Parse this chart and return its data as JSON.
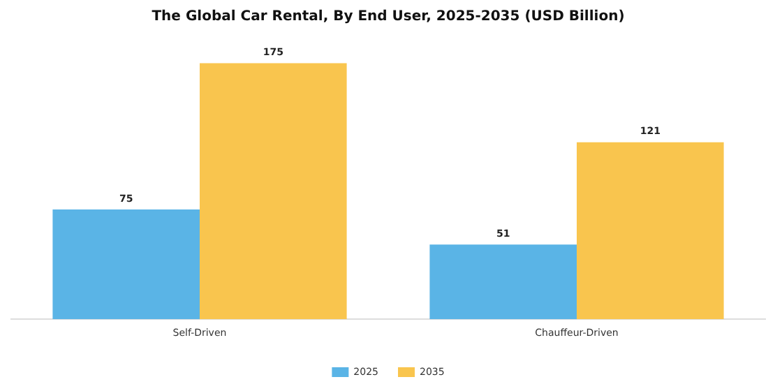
{
  "chart_data": {
    "type": "bar",
    "title": "The Global Car Rental, By End User, 2025-2035 (USD Billion)",
    "categories": [
      "Self-Driven",
      "Chauffeur-Driven"
    ],
    "series": [
      {
        "name": "2025",
        "color": "#5ab4e6",
        "values": [
          75,
          51
        ]
      },
      {
        "name": "2035",
        "color": "#f9c54e",
        "values": [
          175,
          121
        ]
      }
    ],
    "data_labels": true,
    "legend": "bottom",
    "grid": false
  }
}
